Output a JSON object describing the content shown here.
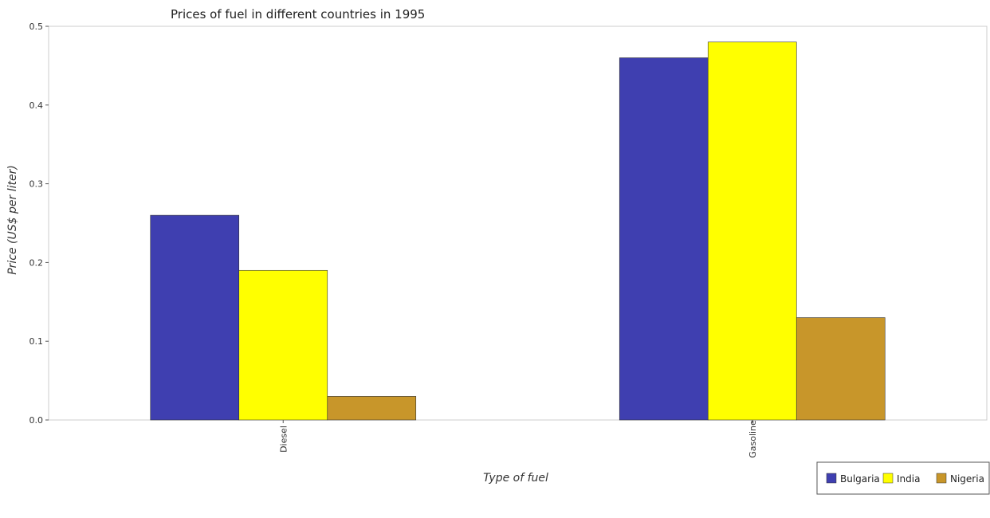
{
  "chart_data": {
    "type": "bar",
    "title": "Prices of fuel in different countries in 1995",
    "xlabel": "Type of fuel",
    "ylabel": "Price (US$ per liter)",
    "categories": [
      "Diesel",
      "Gasoline"
    ],
    "series": [
      {
        "name": "Bulgaria",
        "color": "#3f3fb0",
        "values": [
          0.26,
          0.46
        ]
      },
      {
        "name": "India",
        "color": "#ffff00",
        "values": [
          0.19,
          0.48
        ]
      },
      {
        "name": "Nigeria",
        "color": "#c8962a",
        "values": [
          0.03,
          0.13
        ]
      }
    ],
    "ylim": [
      0,
      0.5
    ],
    "yticks": [
      "0.0",
      "0.1",
      "0.2",
      "0.3",
      "0.4",
      "0.5"
    ],
    "grid": true,
    "legend_position": "bottom-right"
  }
}
